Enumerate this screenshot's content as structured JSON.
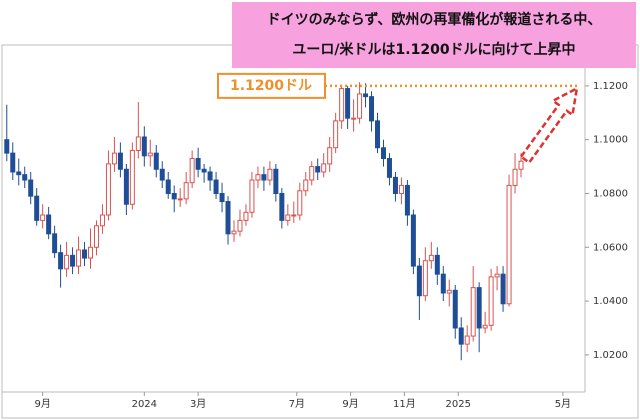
{
  "chart_data": {
    "type": "candlestick",
    "annotations": [
      "ドイツのみならず、欧州の再軍備化が報道される中、",
      "ユーロ/米ドルは1.1200ドルに向けて上昇中"
    ],
    "level": {
      "value": 1.12,
      "label": "1.1200ドル"
    },
    "up_color": "#d9534f",
    "down_color": "#1f4e96",
    "level_color": "#f0902a",
    "ylim": [
      1.0062,
      1.1352
    ],
    "yticks": [
      {
        "value": 1.02,
        "label": "1.0200"
      },
      {
        "value": 1.04,
        "label": "1.0400"
      },
      {
        "value": 1.06,
        "label": "1.0600"
      },
      {
        "value": 1.08,
        "label": "1.0800"
      },
      {
        "value": 1.1,
        "label": "1.1000"
      },
      {
        "value": 1.12,
        "label": "1.1200"
      }
    ],
    "xlim": [
      -0.8,
      96.7
    ],
    "xticks": [
      {
        "value": 6,
        "label": "9月"
      },
      {
        "value": 23,
        "label": "2024"
      },
      {
        "value": 32,
        "label": "3月"
      },
      {
        "value": 48.5,
        "label": "7月"
      },
      {
        "value": 57.5,
        "label": "9月"
      },
      {
        "value": 66.5,
        "label": "11月"
      },
      {
        "value": 75.5,
        "label": "2025"
      },
      {
        "value": 93,
        "label": "5月"
      }
    ],
    "open": [
      1.1,
      1.095,
      1.088,
      1.087,
      1.085,
      1.079,
      1.07,
      1.072,
      1.065,
      1.058,
      1.052,
      1.057,
      1.053,
      1.059,
      1.056,
      1.06,
      1.068,
      1.072,
      1.091,
      1.095,
      1.089,
      1.076,
      1.096,
      1.101,
      1.094,
      1.095,
      1.089,
      1.085,
      1.08,
      1.078,
      1.078,
      1.084,
      1.093,
      1.089,
      1.088,
      1.085,
      1.08,
      1.077,
      1.065,
      1.066,
      1.07,
      1.073,
      1.085,
      1.087,
      1.085,
      1.089,
      1.08,
      1.07,
      1.072,
      1.072,
      1.081,
      1.085,
      1.09,
      1.088,
      1.091,
      1.097,
      1.107,
      1.119,
      1.108,
      1.108,
      1.117,
      1.116,
      1.107,
      1.097,
      1.093,
      1.086,
      1.08,
      1.083,
      1.072,
      1.053,
      1.042,
      1.055,
      1.057,
      1.05,
      1.043,
      1.044,
      1.03,
      1.024,
      1.027,
      1.045,
      1.03,
      1.031,
      1.049,
      1.05,
      1.039,
      1.083,
      1.089
    ],
    "high": [
      1.113,
      1.099,
      1.093,
      1.09,
      1.088,
      1.082,
      1.076,
      1.075,
      1.068,
      1.061,
      1.062,
      1.06,
      1.064,
      1.062,
      1.067,
      1.07,
      1.076,
      1.096,
      1.101,
      1.099,
      1.091,
      1.099,
      1.114,
      1.105,
      1.1,
      1.098,
      1.092,
      1.088,
      1.083,
      1.082,
      1.088,
      1.096,
      1.097,
      1.091,
      1.09,
      1.088,
      1.084,
      1.079,
      1.07,
      1.074,
      1.076,
      1.088,
      1.09,
      1.09,
      1.092,
      1.091,
      1.082,
      1.076,
      1.077,
      1.084,
      1.088,
      1.092,
      1.093,
      1.095,
      1.101,
      1.11,
      1.12,
      1.12,
      1.115,
      1.1214,
      1.121,
      1.118,
      1.11,
      1.1,
      1.095,
      1.088,
      1.086,
      1.085,
      1.074,
      1.056,
      1.06,
      1.062,
      1.06,
      1.053,
      1.048,
      1.046,
      1.034,
      1.031,
      1.053,
      1.047,
      1.036,
      1.052,
      1.053,
      1.053,
      1.087,
      1.095,
      1.095
    ],
    "low": [
      1.092,
      1.085,
      1.083,
      1.082,
      1.076,
      1.068,
      1.067,
      1.063,
      1.056,
      1.045,
      1.049,
      1.05,
      1.05,
      1.053,
      1.052,
      1.057,
      1.065,
      1.07,
      1.088,
      1.086,
      1.072,
      1.074,
      1.093,
      1.09,
      1.09,
      1.086,
      1.082,
      1.078,
      1.073,
      1.075,
      1.076,
      1.082,
      1.086,
      1.084,
      1.081,
      1.078,
      1.073,
      1.061,
      1.062,
      1.064,
      1.068,
      1.071,
      1.082,
      1.081,
      1.083,
      1.077,
      1.067,
      1.068,
      1.069,
      1.07,
      1.079,
      1.083,
      1.085,
      1.086,
      1.088,
      1.095,
      1.104,
      1.104,
      1.103,
      1.106,
      1.112,
      1.103,
      1.095,
      1.09,
      1.083,
      1.077,
      1.076,
      1.068,
      1.05,
      1.033,
      1.04,
      1.052,
      1.046,
      1.04,
      1.038,
      1.026,
      1.018,
      1.021,
      1.025,
      1.021,
      1.028,
      1.029,
      1.044,
      1.036,
      1.038,
      1.08,
      1.086
    ],
    "close": [
      1.095,
      1.088,
      1.087,
      1.085,
      1.079,
      1.07,
      1.072,
      1.065,
      1.058,
      1.052,
      1.057,
      1.053,
      1.059,
      1.056,
      1.06,
      1.068,
      1.072,
      1.091,
      1.095,
      1.089,
      1.076,
      1.096,
      1.101,
      1.094,
      1.095,
      1.089,
      1.085,
      1.08,
      1.078,
      1.078,
      1.084,
      1.093,
      1.089,
      1.088,
      1.085,
      1.08,
      1.077,
      1.065,
      1.066,
      1.07,
      1.073,
      1.085,
      1.087,
      1.085,
      1.089,
      1.08,
      1.07,
      1.072,
      1.072,
      1.081,
      1.085,
      1.09,
      1.088,
      1.091,
      1.097,
      1.107,
      1.119,
      1.108,
      1.108,
      1.117,
      1.116,
      1.107,
      1.097,
      1.093,
      1.086,
      1.08,
      1.083,
      1.072,
      1.053,
      1.042,
      1.055,
      1.057,
      1.05,
      1.043,
      1.044,
      1.03,
      1.024,
      1.027,
      1.045,
      1.03,
      1.031,
      1.049,
      1.05,
      1.039,
      1.083,
      1.089,
      1.092
    ]
  }
}
